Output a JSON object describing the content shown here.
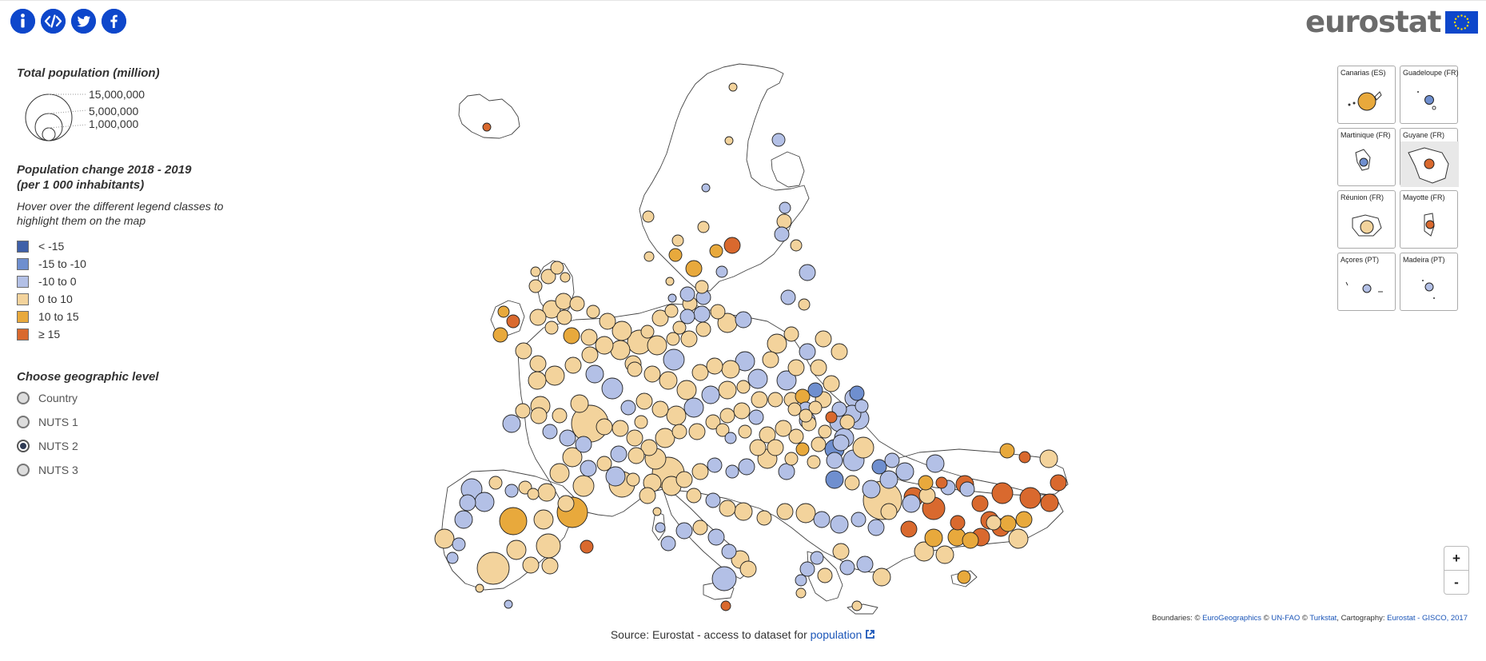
{
  "toolbar": {
    "icons": [
      {
        "name": "info-icon",
        "glyph": "i"
      },
      {
        "name": "embed-icon",
        "glyph": "</>"
      },
      {
        "name": "twitter-icon",
        "glyph": "t"
      },
      {
        "name": "facebook-icon",
        "glyph": "f"
      }
    ]
  },
  "logo": {
    "text": "eurostat"
  },
  "legend": {
    "size_title": "Total population (million)",
    "size_labels": [
      "15,000,000",
      "5,000,000",
      "1,000,000"
    ],
    "color_title_line1": "Population change 2018 - 2019",
    "color_title_line2": "(per 1 000 inhabitants)",
    "hover_note_line1": "Hover over the different legend classes to",
    "hover_note_line2": "highlight them on the map",
    "classes": [
      {
        "label": "< -15",
        "color": "#3f60a8"
      },
      {
        "label": "-15 to -10",
        "color": "#6f8fcf"
      },
      {
        "label": "-10 to 0",
        "color": "#b3c0e6"
      },
      {
        "label": "0 to 10",
        "color": "#f3d39c"
      },
      {
        "label": "10 to 15",
        "color": "#e8a93c"
      },
      {
        "label": "≥ 15",
        "color": "#d9692e"
      }
    ],
    "geo_title": "Choose geographic level",
    "geo_levels": [
      "Country",
      "NUTS 1",
      "NUTS 2",
      "NUTS 3"
    ],
    "geo_selected": "NUTS 2"
  },
  "insets": [
    "Canarias (ES)",
    "Guadeloupe (FR)",
    "Martinique (FR)",
    "Guyane (FR)",
    "Réunion (FR)",
    "Mayotte (FR)",
    "Açores (PT)",
    "Madeira (PT)"
  ],
  "zoom": {
    "in": "+",
    "out": "-"
  },
  "source": {
    "text": "Source: Eurostat - access to dataset for ",
    "link": "population"
  },
  "attribution": {
    "prefix": "Boundaries: © ",
    "link1": "EuroGeographics",
    "mid1": " © ",
    "link2": "UN-FAO",
    "mid2": " © ",
    "link3": "Turkstat",
    "mid3": ", Cartography: ",
    "link4": "Eurostat - GISCO, 2017"
  }
}
